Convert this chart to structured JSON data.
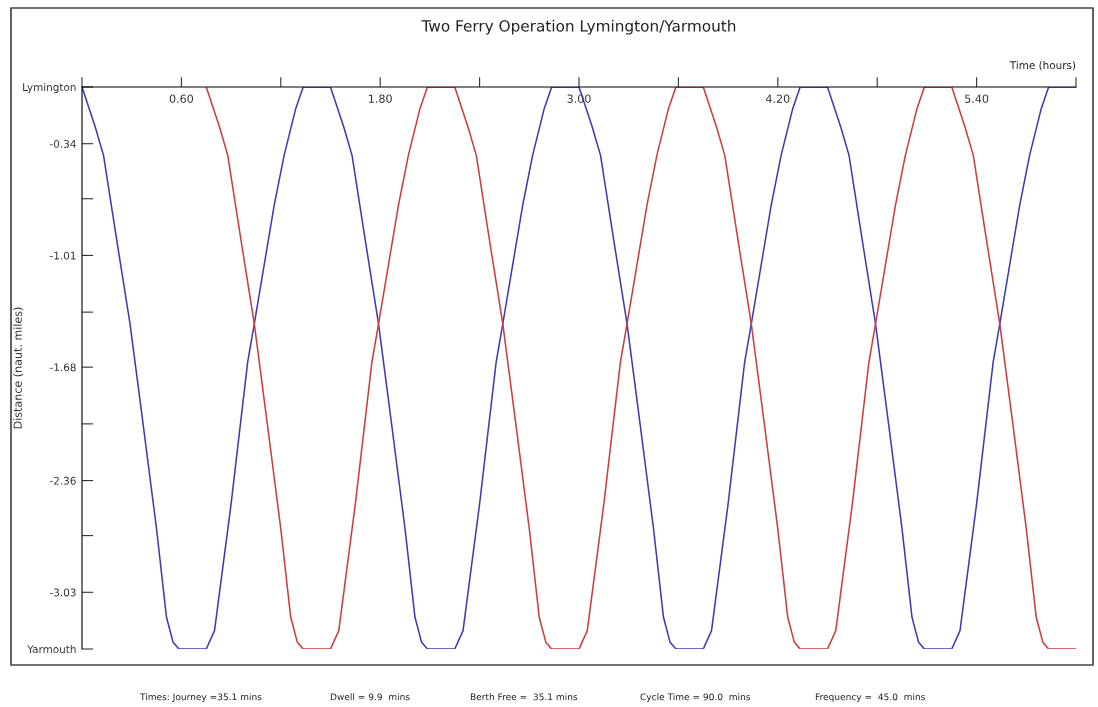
{
  "chart_data": {
    "type": "line",
    "title": "Two Ferry Operation Lymington/Yarmouth",
    "xlabel": "Time (hours)",
    "ylabel": "Distance (naut. miles)",
    "xlim": [
      0,
      6.0
    ],
    "ylim": [
      -3.37,
      0
    ],
    "xticks": [
      {
        "value": 0,
        "label": null
      },
      {
        "value": 0.6,
        "label": "0.60"
      },
      {
        "value": 1.2,
        "label": null
      },
      {
        "value": 1.8,
        "label": "1.80"
      },
      {
        "value": 2.4,
        "label": null
      },
      {
        "value": 3.0,
        "label": "3.00"
      },
      {
        "value": 3.6,
        "label": null
      },
      {
        "value": 4.2,
        "label": "4.20"
      },
      {
        "value": 4.8,
        "label": null
      },
      {
        "value": 5.4,
        "label": "5.40"
      },
      {
        "value": 6.0,
        "label": null
      }
    ],
    "yticks": [
      {
        "value": 0,
        "label": "Lymington"
      },
      -0.34,
      {
        "value": -0.67,
        "label": null
      },
      -1.01,
      {
        "value": -1.35,
        "label": null
      },
      -1.68,
      {
        "value": -2.02,
        "label": null
      },
      -2.36,
      {
        "value": -2.69,
        "label": null
      },
      -3.03,
      {
        "value": -3.37,
        "label": "Yarmouth"
      }
    ],
    "series": [
      {
        "color": "#3a3ab8",
        "x": [
          0,
          0.08,
          0.13,
          0.21,
          0.29,
          0.37,
          0.45,
          0.51,
          0.55,
          0.585,
          0.75,
          0.8,
          0.9,
          1.0,
          1.04,
          1.16,
          1.22,
          1.29,
          1.335,
          1.5,
          1.58,
          1.63,
          1.71,
          1.79,
          1.87,
          1.95,
          2.01,
          2.05,
          2.085,
          2.25,
          2.3,
          2.4,
          2.5,
          2.54,
          2.66,
          2.72,
          2.79,
          2.835,
          3,
          3.08,
          3.13,
          3.21,
          3.29,
          3.37,
          3.45,
          3.51,
          3.55,
          3.585,
          3.75,
          3.8,
          3.9,
          4.0,
          4.04,
          4.16,
          4.22,
          4.29,
          4.335,
          4.5,
          4.58,
          4.63,
          4.71,
          4.79,
          4.87,
          4.95,
          5.01,
          5.05,
          5.085,
          5.25,
          5.3,
          5.4,
          5.5,
          5.54,
          5.66,
          5.72,
          5.79,
          5.835,
          6.0
        ],
        "values": [
          0,
          -0.24,
          -0.41,
          -0.92,
          -1.42,
          -2.03,
          -2.65,
          -3.18,
          -3.33,
          -3.37,
          -3.37,
          -3.26,
          -2.5,
          -1.65,
          -1.42,
          -0.71,
          -0.41,
          -0.13,
          0,
          0,
          -0.24,
          -0.41,
          -0.92,
          -1.42,
          -2.03,
          -2.65,
          -3.18,
          -3.33,
          -3.37,
          -3.37,
          -3.26,
          -2.5,
          -1.65,
          -1.42,
          -0.71,
          -0.41,
          -0.13,
          0,
          0,
          -0.24,
          -0.41,
          -0.92,
          -1.42,
          -2.03,
          -2.65,
          -3.18,
          -3.33,
          -3.37,
          -3.37,
          -3.26,
          -2.5,
          -1.65,
          -1.42,
          -0.71,
          -0.41,
          -0.13,
          0,
          0,
          -0.24,
          -0.41,
          -0.92,
          -1.42,
          -2.03,
          -2.65,
          -3.18,
          -3.33,
          -3.37,
          -3.37,
          -3.26,
          -2.5,
          -1.65,
          -1.42,
          -0.71,
          -0.41,
          -0.13,
          0,
          0
        ]
      },
      {
        "color": "#d03a3a",
        "x": [
          0.75,
          0.83,
          0.88,
          0.96,
          1.04,
          1.12,
          1.2,
          1.26,
          1.3,
          1.335,
          1.5,
          1.55,
          1.65,
          1.75,
          1.79,
          1.91,
          1.97,
          2.04,
          2.085,
          2.25,
          2.33,
          2.38,
          2.46,
          2.54,
          2.62,
          2.7,
          2.76,
          2.8,
          2.835,
          3.0,
          3.05,
          3.15,
          3.25,
          3.29,
          3.41,
          3.47,
          3.54,
          3.585,
          3.75,
          3.83,
          3.88,
          3.96,
          4.04,
          4.12,
          4.2,
          4.26,
          4.3,
          4.335,
          4.5,
          4.55,
          4.65,
          4.75,
          4.79,
          4.91,
          4.97,
          5.04,
          5.085,
          5.25,
          5.33,
          5.38,
          5.46,
          5.54,
          5.62,
          5.7,
          5.76,
          5.8,
          5.835,
          6.0
        ],
        "values": [
          0,
          -0.24,
          -0.41,
          -0.92,
          -1.42,
          -2.03,
          -2.65,
          -3.18,
          -3.33,
          -3.37,
          -3.37,
          -3.26,
          -2.5,
          -1.65,
          -1.42,
          -0.71,
          -0.41,
          -0.13,
          0,
          0,
          -0.24,
          -0.41,
          -0.92,
          -1.42,
          -2.03,
          -2.65,
          -3.18,
          -3.33,
          -3.37,
          -3.37,
          -3.26,
          -2.5,
          -1.65,
          -1.42,
          -0.71,
          -0.41,
          -0.13,
          0,
          0,
          -0.24,
          -0.41,
          -0.92,
          -1.42,
          -2.03,
          -2.65,
          -3.18,
          -3.33,
          -3.37,
          -3.37,
          -3.26,
          -2.5,
          -1.65,
          -1.42,
          -0.71,
          -0.41,
          -0.13,
          0,
          0,
          -0.24,
          -0.41,
          -0.92,
          -1.42,
          -2.03,
          -2.65,
          -3.18,
          -3.33,
          -3.37,
          -3.37
        ]
      }
    ],
    "annotations": [
      "Times: Journey =35.1 mins",
      "Dwell = 9.9  mins",
      "Berth Free =  35.1 mins",
      "Cycle Time = 90.0  mins",
      "Frequency =  45.0  mins"
    ]
  }
}
